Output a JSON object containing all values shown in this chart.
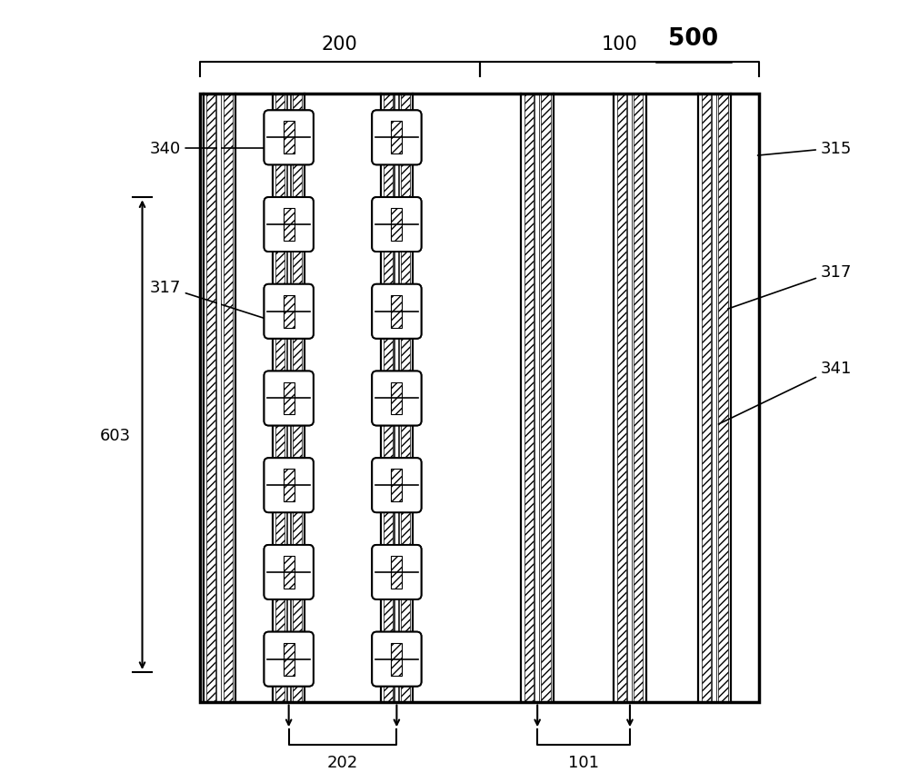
{
  "figure_width": 10.0,
  "figure_height": 8.62,
  "bg_color": "#ffffff",
  "line_color": "#000000",
  "title": "500",
  "label_200": "200",
  "label_100": "100",
  "label_340": "340",
  "label_317_left": "317",
  "label_315": "315",
  "label_317_right": "317",
  "label_341": "341",
  "label_603": "603",
  "label_202": "202",
  "label_101": "101"
}
